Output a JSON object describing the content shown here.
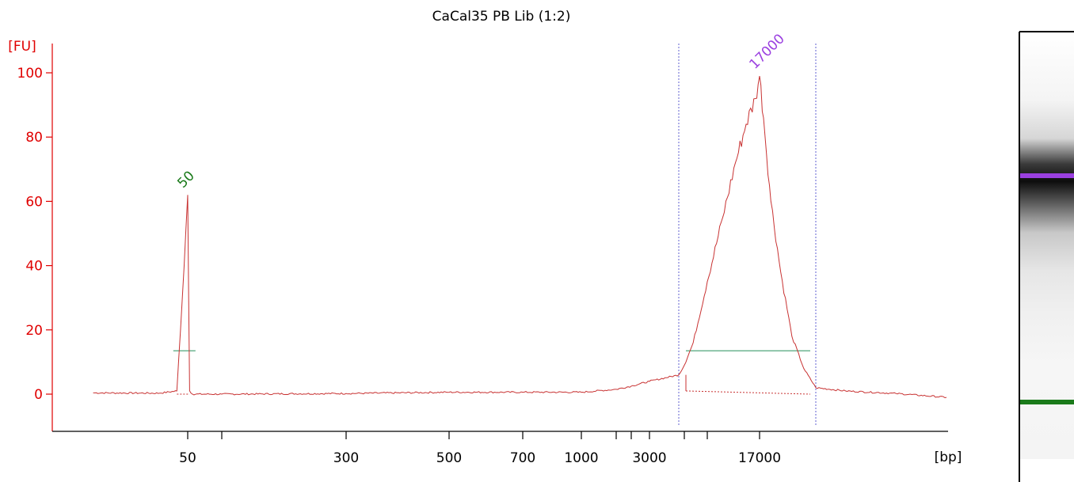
{
  "chart_data": {
    "type": "line",
    "title": "CaCal35 PB Lib (1:2)",
    "ylabel": "[FU]",
    "xlabel": "[bp]",
    "ylim": [
      -10,
      105
    ],
    "y_ticks": [
      0,
      20,
      40,
      60,
      80,
      100
    ],
    "x_tick_labels": [
      "50",
      "300",
      "500",
      "700",
      "1000",
      "3000",
      "17000"
    ],
    "x_axis_scale": "log (ladder-calibrated)",
    "grid": false,
    "series": [
      {
        "color": "#c83232",
        "points": [
          {
            "bp": 35,
            "fu": 0.4
          },
          {
            "bp": 45,
            "fu": 0.3
          },
          {
            "bp": 48,
            "fu": 1
          },
          {
            "bp": 49,
            "fu": 30
          },
          {
            "bp": 50,
            "fu": 62
          },
          {
            "bp": 51,
            "fu": 30
          },
          {
            "bp": 52,
            "fu": 1
          },
          {
            "bp": 55,
            "fu": 0
          },
          {
            "bp": 100,
            "fu": 0
          },
          {
            "bp": 300,
            "fu": 0.2
          },
          {
            "bp": 500,
            "fu": 0.6
          },
          {
            "bp": 700,
            "fu": 0.6
          },
          {
            "bp": 1000,
            "fu": 0.6
          },
          {
            "bp": 1500,
            "fu": 1.5
          },
          {
            "bp": 2000,
            "fu": 2.5
          },
          {
            "bp": 3000,
            "fu": 4
          },
          {
            "bp": 4000,
            "fu": 6
          },
          {
            "bp": 5000,
            "fu": 9
          },
          {
            "bp": 6000,
            "fu": 16
          },
          {
            "bp": 8000,
            "fu": 35
          },
          {
            "bp": 10000,
            "fu": 55
          },
          {
            "bp": 12000,
            "fu": 72
          },
          {
            "bp": 14000,
            "fu": 84
          },
          {
            "bp": 16000,
            "fu": 92
          },
          {
            "bp": 17000,
            "fu": 99
          },
          {
            "bp": 18000,
            "fu": 86
          },
          {
            "bp": 20000,
            "fu": 60
          },
          {
            "bp": 23000,
            "fu": 38
          },
          {
            "bp": 27000,
            "fu": 18
          },
          {
            "bp": 32000,
            "fu": 8
          },
          {
            "bp": 38000,
            "fu": 2
          },
          {
            "bp": 45000,
            "fu": 1
          },
          {
            "bp": 60000,
            "fu": 0.2
          },
          {
            "bp": 80000,
            "fu": -1
          }
        ]
      }
    ],
    "peaks": [
      {
        "label": "50",
        "bp": 50,
        "fu": 62,
        "color": "#1a7a1a"
      },
      {
        "label": "17000",
        "bp": 17000,
        "fu": 99,
        "color": "#9b40e0"
      }
    ],
    "region_bounds_bp": [
      4000,
      38000
    ],
    "region_baseline_fu": 13.5
  },
  "gel": {
    "bands": [
      {
        "name": "upper-marker",
        "color": "#9b40e0"
      },
      {
        "name": "lower-marker",
        "color": "#1a7a1a"
      }
    ]
  },
  "colors": {
    "axis": "#000000",
    "y_axis_text": "#e00000",
    "trace": "#c83232",
    "region_line": "#3c9c6c",
    "boundary": "#6060d0"
  }
}
